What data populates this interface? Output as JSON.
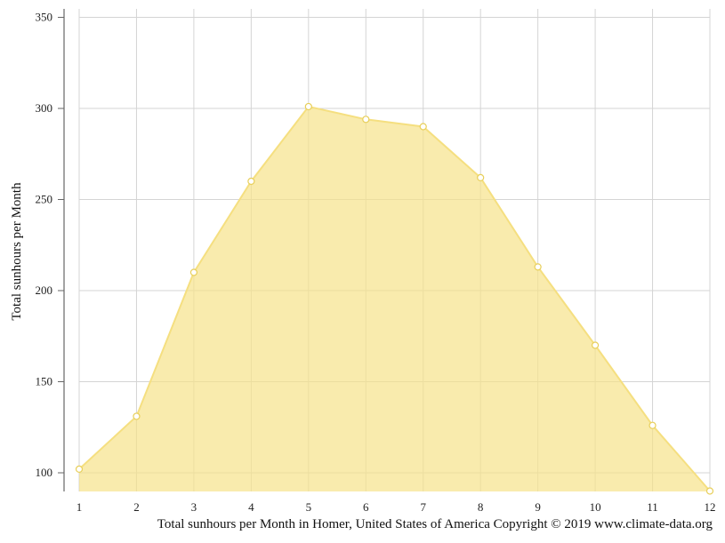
{
  "chart_data": {
    "type": "area",
    "title": "",
    "xlabel": "",
    "ylabel": "Total sunhours per Month",
    "x": [
      1,
      2,
      3,
      4,
      5,
      6,
      7,
      8,
      9,
      10,
      11,
      12
    ],
    "series": [
      {
        "name": "",
        "values": [
          102,
          131,
          210,
          260,
          301,
          294,
          290,
          262,
          213,
          170,
          126,
          90
        ]
      }
    ],
    "xticks": [
      "1",
      "2",
      "3",
      "4",
      "5",
      "6",
      "7",
      "8",
      "9",
      "10",
      "11",
      "12"
    ],
    "yticks": [
      100,
      150,
      200,
      250,
      300,
      350
    ],
    "ylim": [
      90,
      355
    ],
    "xlim": [
      1,
      12
    ],
    "grid": true,
    "legend": "none",
    "colors": {
      "fill": "#f7e28a",
      "line": "#f5df80",
      "marker_fill": "#ffffff",
      "marker_stroke": "#e8cf5a",
      "grid": "#d4d4d4",
      "axis": "#666666"
    }
  },
  "caption": "Total sunhours per Month in Homer, United States of America Copyright © 2019 www.climate-data.org"
}
